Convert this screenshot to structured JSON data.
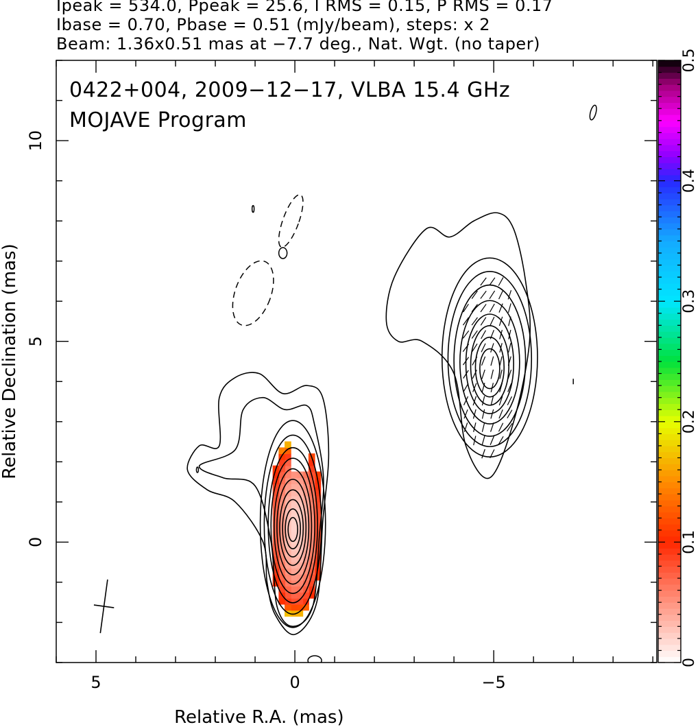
{
  "header": {
    "line1": "Ipeak = 534.0, Ppeak = 25.6, I RMS = 0.15, P RMS = 0.17",
    "line2": "Ibase = 0.70, Pbase = 0.51 (mJy/beam), steps: x 2",
    "line3": "Beam: 1.36x0.51 mas at −7.7 deg., Nat. Wgt. (no taper)"
  },
  "chart_data": {
    "type": "heatmap",
    "title_lines": [
      "0422+004, 2009−12−17, VLBA 15.4 GHz",
      "MOJAVE Program"
    ],
    "xlabel": "Relative R.A. (mas)",
    "ylabel": "Relative Declination (mas)",
    "xlim": [
      6.0,
      -9.1
    ],
    "ylim": [
      -3.0,
      12.0
    ],
    "xticks": [
      5,
      0,
      -5
    ],
    "xtick_labels": [
      "5",
      "0",
      "−5"
    ],
    "yticks": [
      0,
      5,
      10
    ],
    "ytick_labels": [
      "0",
      "5",
      "10"
    ],
    "colorbar": {
      "range": [
        0,
        0.5
      ],
      "ticks": [
        0,
        0.1,
        0.2,
        0.3,
        0.4,
        0.5
      ],
      "tick_labels": [
        "0",
        "0.1",
        "0.2",
        "0.3",
        "0.4",
        "0.5"
      ]
    },
    "beam": {
      "major_mas": 1.36,
      "minor_mas": 0.51,
      "pa_deg": -7.7,
      "center": [
        4.8,
        -1.6
      ]
    },
    "components": [
      {
        "name": "core",
        "center": [
          0.05,
          0.3
        ],
        "peak_mJy": 534.0
      },
      {
        "name": "jet",
        "center": [
          -4.9,
          4.3
        ]
      }
    ],
    "polarization_region": {
      "x_range": [
        -0.8,
        0.7
      ],
      "y_range": [
        -2.0,
        3.0
      ],
      "fraction_range": [
        0.0,
        0.3
      ]
    },
    "grid": false
  }
}
